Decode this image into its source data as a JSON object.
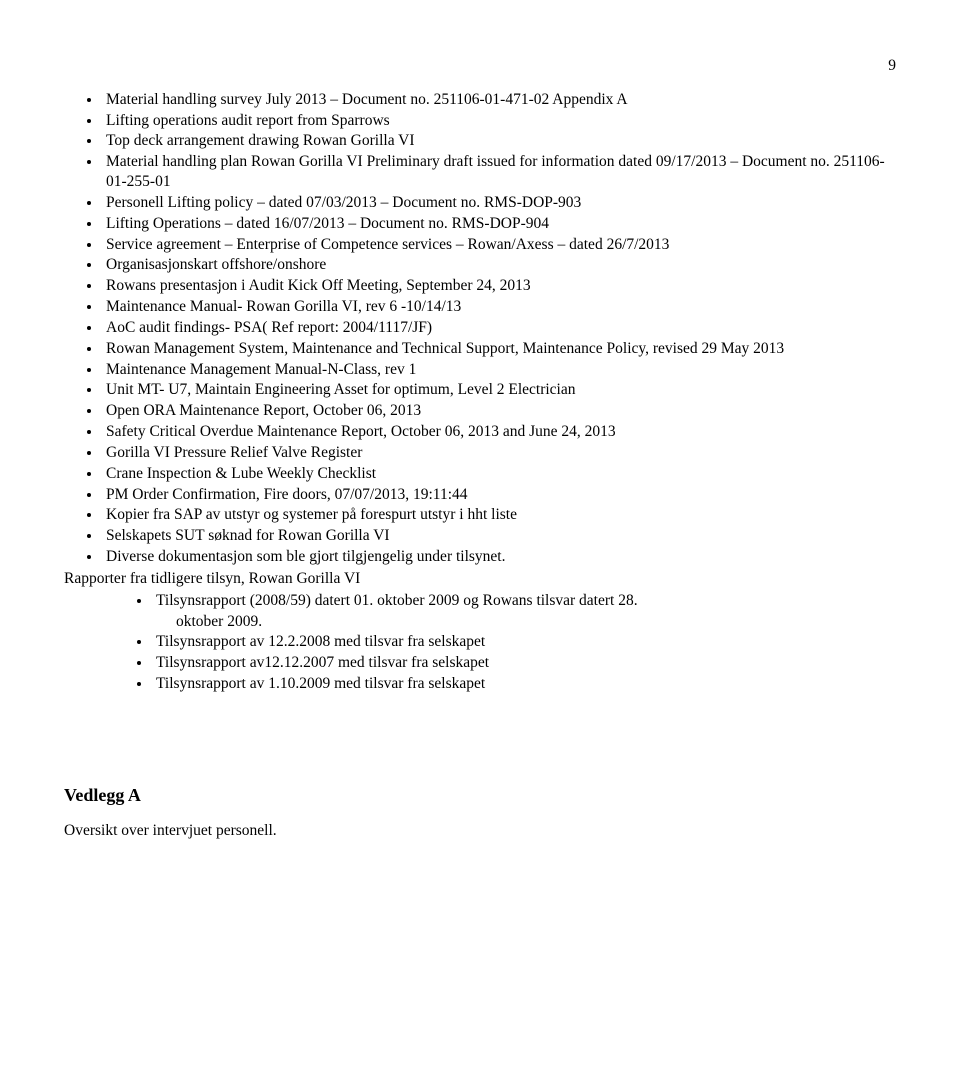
{
  "page_number": "9",
  "main_list": [
    "Material handling survey July 2013 – Document no. 251106-01-471-02 Appendix A",
    "Lifting operations audit report from Sparrows",
    "Top deck arrangement drawing Rowan Gorilla VI",
    "Material handling plan Rowan Gorilla VI Preliminary draft issued for information dated 09/17/2013 – Document no. 251106-01-255-01",
    "Personell Lifting policy – dated 07/03/2013 – Document no. RMS-DOP-903",
    "Lifting Operations – dated 16/07/2013 – Document no. RMS-DOP-904",
    "Service agreement – Enterprise of Competence services – Rowan/Axess – dated 26/7/2013",
    "Organisasjonskart offshore/onshore",
    "Rowans presentasjon i Audit Kick Off Meeting, September 24, 2013",
    "Maintenance Manual- Rowan Gorilla VI, rev 6 -10/14/13",
    "AoC audit findings- PSA( Ref report: 2004/1117/JF)",
    "Rowan Management System, Maintenance and Technical Support, Maintenance Policy, revised 29 May 2013",
    "Maintenance Management Manual-N-Class, rev 1",
    "Unit MT- U7, Maintain Engineering Asset for optimum, Level 2 Electrician",
    "Open ORA Maintenance Report, October 06, 2013",
    "Safety Critical Overdue Maintenance Report, October 06, 2013 and June 24, 2013",
    "Gorilla VI Pressure Relief Valve Register",
    "Crane Inspection & Lube Weekly Checklist",
    "PM Order Confirmation, Fire doors, 07/07/2013, 19:11:44",
    "Kopier fra SAP av utstyr og systemer på forespurt utstyr i hht liste",
    "Selskapets SUT søknad for Rowan Gorilla VI",
    "Diverse dokumentasjon som ble gjort tilgjengelig under tilsynet."
  ],
  "after_list_text": "Rapporter fra tidligere tilsyn, Rowan Gorilla VI",
  "nested_list": [
    {
      "type": "li",
      "text": "Tilsynsrapport (2008/59) datert 01. oktober 2009 og Rowans tilsvar datert 28."
    },
    {
      "type": "cont",
      "text": "oktober 2009."
    },
    {
      "type": "li",
      "text": "Tilsynsrapport av 12.2.2008 med tilsvar fra selskapet"
    },
    {
      "type": "li",
      "text": "Tilsynsrapport av12.12.2007 med tilsvar fra selskapet"
    },
    {
      "type": "li",
      "text": "Tilsynsrapport av 1.10.2009 med tilsvar fra selskapet"
    }
  ],
  "section_title": "Vedlegg A",
  "section_text": "Oversikt over intervjuet personell."
}
